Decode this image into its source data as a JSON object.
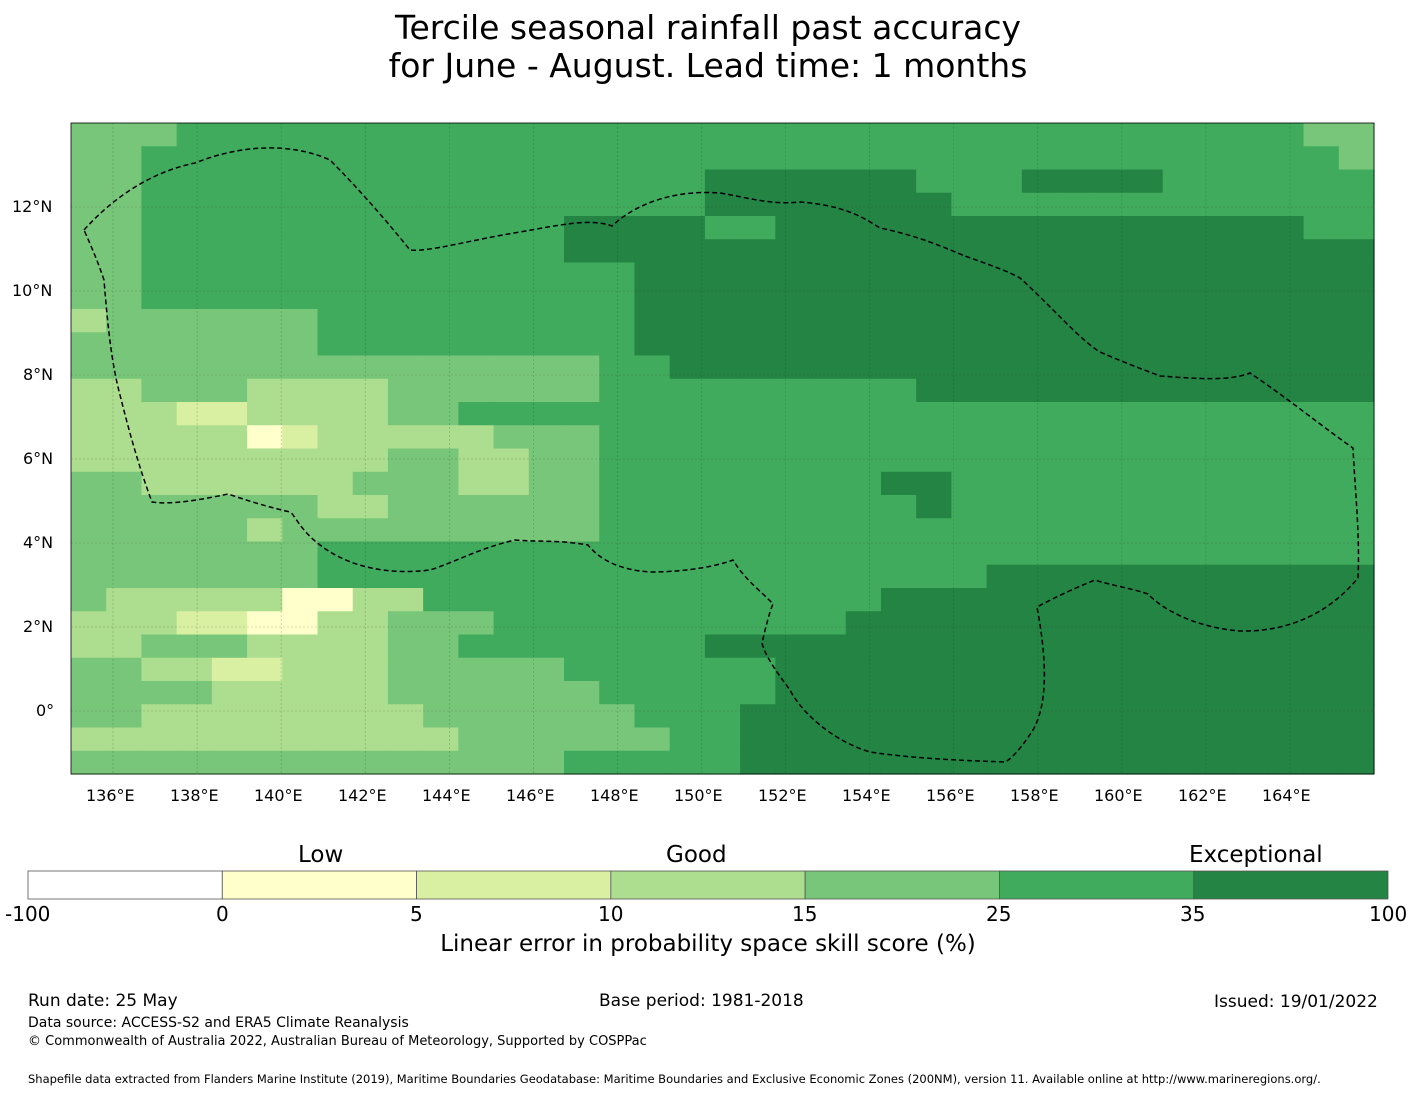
{
  "title": {
    "line1": "Tercile seasonal rainfall past accuracy",
    "line2": "for June - August. Lead time: 1 months"
  },
  "map": {
    "lon_labels": [
      "136°E",
      "138°E",
      "140°E",
      "142°E",
      "144°E",
      "146°E",
      "148°E",
      "150°E",
      "152°E",
      "154°E",
      "156°E",
      "158°E",
      "160°E",
      "162°E",
      "164°E"
    ],
    "lat_labels": [
      "12°N",
      "10°N",
      "8°N",
      "6°N",
      "4°N",
      "2°N",
      "0°"
    ],
    "lon_range": [
      135,
      166
    ],
    "lat_range": [
      -1.5,
      14
    ],
    "colors": {
      "c0": "#ffffcc",
      "c1": "#d9f0a3",
      "c2": "#addd8e",
      "c3": "#78c679",
      "c4": "#41ab5d",
      "c5": "#238443"
    },
    "grid_rows": [
      "3334444444444444444444444444444444433",
      "3344444444444444444444444444444444443",
      "3344444444444444445555554445555444444",
      "3344444444444444445555555444444444444",
      "3344444444444455554455555555555555544",
      "3344444444444455555555555555555555555",
      "3344444444444444555555555555555555555",
      "3344444444444444555555555555555555555",
      "2333333444444444555555555555555555555",
      "3333333444444444555555555555555555555",
      "3333333333333334455555555555555555555",
      "2233322223333334444444445555555555555",
      "2221122223344444444444444444444444444",
      "2222201222223334444444444444444444444",
      "2222222223322334444444444444444444444",
      "3322222233322334444444455444444444444",
      "3333333223333334444444445444444444444",
      "3333323333333334444444444444444444444",
      "3333333444444444444444444444444444444",
      "3333333444444444444444444455555555555",
      "3222220022444444444444455555555555555",
      "2221100223334444444444555555555555555",
      "2233322223344444445555555555555555555",
      "3322112223333344444455555555555555555",
      "3333222223333334444455555555555555555",
      "3322222222333333444555555555555555555",
      "2222222222233333344555555555555555555",
      "3333333333333344444555555555555555555"
    ]
  },
  "legend": {
    "categories": [
      "Low",
      "Good",
      "Exceptional"
    ],
    "ticks": [
      "-100",
      "0",
      "5",
      "10",
      "15",
      "25",
      "35",
      "100"
    ],
    "swatches": [
      "#ffffff",
      "#ffffcc",
      "#d9f0a3",
      "#addd8e",
      "#78c679",
      "#41ab5d",
      "#238443"
    ],
    "title": "Linear error in probability space skill score (%)"
  },
  "footer": {
    "run_date": "Run date: 25 May",
    "base_period": "Base period: 1981-2018",
    "issued": "Issued: 19/01/2022",
    "data_source": "Data source: ACCESS-S2 and ERA5 Climate Reanalysis",
    "copyright": "© Commonwealth of Australia 2022, Australian Bureau of Meteorology, Supported by COSPPac",
    "shapefile": "Shapefile data extracted from Flanders Marine Institute (2019), Maritime Boundaries Geodatabase: Maritime Boundaries and Exclusive Economic Zones (200NM), version 11. Available online at http://www.marineregions.org/."
  }
}
